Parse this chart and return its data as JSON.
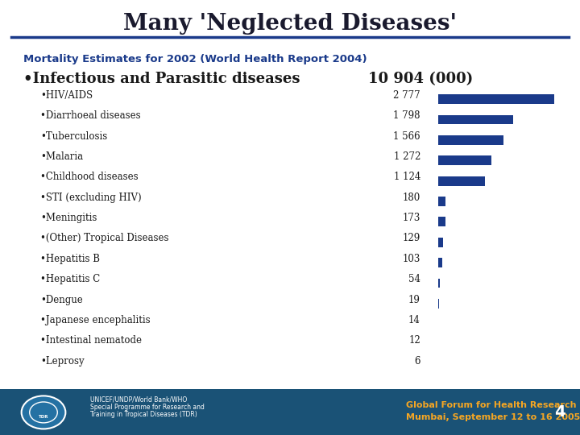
{
  "title": "Many 'Neglected Diseases'",
  "title_color": "#1a1a2e",
  "subtitle": "Mortality Estimates for 2002 (World Health Report 2004)",
  "subtitle_color": "#1a3a8a",
  "header_disease": "•Infectious and Parasitic diseases",
  "header_value": "10 904 (000)",
  "diseases": [
    "•HIV/AIDS",
    "•Diarrhoeal diseases",
    "•Tuberculosis",
    "•Malaria",
    "•Childhood diseases",
    "•STI (excluding HIV)",
    "•Meningitis",
    "•(Other) Tropical Diseases",
    "•Hepatitis B",
    "•Hepatitis C",
    "•Dengue",
    "•Japanese encephalitis",
    "•Intestinal nematode",
    "•Leprosy"
  ],
  "values": [
    "2 777",
    "1 798",
    "1 566",
    "1 272",
    "1 124",
    "180",
    "173",
    "129",
    "103",
    "54",
    "19",
    "14",
    "12",
    "6"
  ],
  "bar_color": "#1a3a8a",
  "footer_bg": "#1a5276",
  "footer_left1": "UNICEF/UNDP/World Bank/WHO",
  "footer_left2": "Special Programme for Research and",
  "footer_left3": "Training in Tropical Diseases (TDR)",
  "footer_right1": "Global Forum for Health Research",
  "footer_right2": "Mumbai, September 12 to 16 2005",
  "footer_right_color": "#f5a623",
  "page_number": "4",
  "bg_color": "#ffffff",
  "line_color": "#1a3a8a"
}
